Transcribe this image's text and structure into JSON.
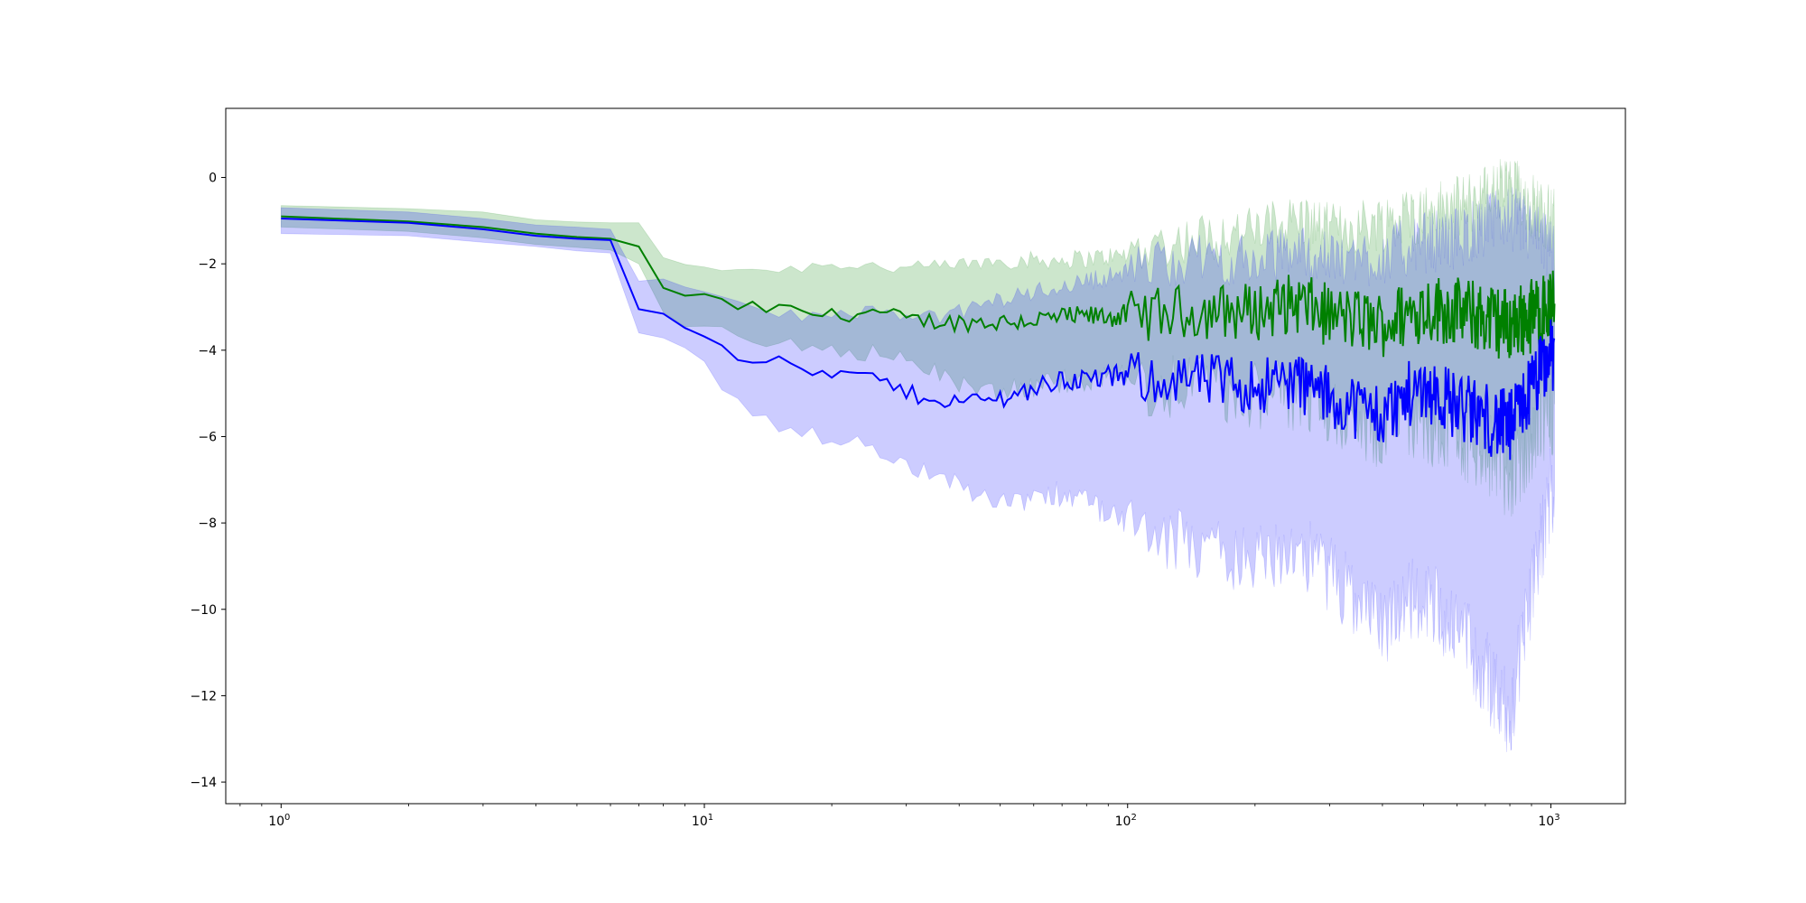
{
  "chart_data": {
    "type": "line",
    "title": "",
    "xlabel": "",
    "ylabel": "",
    "xscale": "log",
    "xlim": [
      0.74,
      1500
    ],
    "ylim": [
      -14.5,
      1.6
    ],
    "grid": false,
    "legend": "none",
    "x_ticks": [
      {
        "value": 1,
        "base": "10",
        "exp": "0"
      },
      {
        "value": 10,
        "base": "10",
        "exp": "1"
      },
      {
        "value": 100,
        "base": "10",
        "exp": "2"
      },
      {
        "value": 1000,
        "base": "10",
        "exp": "3"
      }
    ],
    "y_ticks": [
      {
        "value": 0,
        "label": "0"
      },
      {
        "value": -2,
        "label": "−2"
      },
      {
        "value": -4,
        "label": "−4"
      },
      {
        "value": -6,
        "label": "−6"
      },
      {
        "value": -8,
        "label": "−8"
      },
      {
        "value": -10,
        "label": "−10"
      },
      {
        "value": -12,
        "label": "−12"
      },
      {
        "value": -14,
        "label": "−14"
      }
    ],
    "series": [
      {
        "color": "#008000",
        "band_color": "#008000",
        "band_opacity": 0.2,
        "anchors": [
          [
            1,
            -0.9,
            -0.65,
            -1.15
          ],
          [
            2,
            -1.02,
            -0.72,
            -1.25
          ],
          [
            3,
            -1.15,
            -0.8,
            -1.4
          ],
          [
            4,
            -1.3,
            -0.98,
            -1.55
          ],
          [
            5,
            -1.38,
            -1.03,
            -1.62
          ],
          [
            6,
            -1.42,
            -1.05,
            -1.68
          ],
          [
            7,
            -1.6,
            -1.05,
            -2.0
          ],
          [
            8,
            -2.55,
            -1.95,
            -3.1
          ],
          [
            10,
            -2.8,
            -2.1,
            -3.4
          ],
          [
            12,
            -3.0,
            -2.15,
            -3.6
          ],
          [
            15,
            -3.05,
            -2.2,
            -3.75
          ],
          [
            20,
            -3.2,
            -2.05,
            -4.0
          ],
          [
            25,
            -3.1,
            -2.1,
            -4.0
          ],
          [
            30,
            -3.3,
            -2.2,
            -4.2
          ],
          [
            40,
            -3.35,
            -2.1,
            -4.6
          ],
          [
            50,
            -3.35,
            -2.0,
            -4.8
          ],
          [
            70,
            -3.25,
            -2.0,
            -4.6
          ],
          [
            100,
            -3.2,
            -1.9,
            -4.5
          ],
          [
            150,
            -3.1,
            -1.6,
            -4.5
          ],
          [
            200,
            -3.1,
            -1.5,
            -4.7
          ],
          [
            250,
            -2.9,
            -1.2,
            -4.8
          ],
          [
            300,
            -3.2,
            -1.5,
            -4.9
          ],
          [
            400,
            -3.4,
            -1.3,
            -5.5
          ],
          [
            500,
            -3.0,
            -1.1,
            -5.3
          ],
          [
            600,
            -3.1,
            -1.0,
            -5.5
          ],
          [
            800,
            -3.4,
            -0.5,
            -6.5
          ],
          [
            1000,
            -3.0,
            -1.3,
            -4.9
          ]
        ]
      },
      {
        "color": "#0000ff",
        "band_color": "#0000ff",
        "band_opacity": 0.2,
        "anchors": [
          [
            1,
            -0.95,
            -0.7,
            -1.3
          ],
          [
            2,
            -1.05,
            -0.8,
            -1.35
          ],
          [
            3,
            -1.2,
            -0.95,
            -1.5
          ],
          [
            4,
            -1.35,
            -1.1,
            -1.6
          ],
          [
            5,
            -1.42,
            -1.15,
            -1.7
          ],
          [
            6,
            -1.45,
            -1.2,
            -1.75
          ],
          [
            7,
            -3.05,
            -2.4,
            -3.6
          ],
          [
            8,
            -3.15,
            -2.5,
            -3.7
          ],
          [
            10,
            -3.6,
            -2.8,
            -4.3
          ],
          [
            12,
            -4.1,
            -3.0,
            -5.2
          ],
          [
            15,
            -4.3,
            -3.2,
            -5.7
          ],
          [
            20,
            -4.6,
            -3.3,
            -6.0
          ],
          [
            25,
            -4.6,
            -3.1,
            -6.1
          ],
          [
            30,
            -5.0,
            -3.4,
            -6.6
          ],
          [
            40,
            -5.2,
            -3.2,
            -7.0
          ],
          [
            50,
            -5.1,
            -2.9,
            -7.4
          ],
          [
            70,
            -4.7,
            -2.6,
            -7.2
          ],
          [
            100,
            -4.6,
            -2.3,
            -7.8
          ],
          [
            150,
            -4.7,
            -2.1,
            -8.3
          ],
          [
            200,
            -4.8,
            -2.2,
            -8.6
          ],
          [
            250,
            -4.7,
            -1.9,
            -8.2
          ],
          [
            300,
            -5.1,
            -2.2,
            -8.8
          ],
          [
            400,
            -5.5,
            -2.1,
            -10.0
          ],
          [
            500,
            -4.8,
            -1.8,
            -9.2
          ],
          [
            600,
            -5.3,
            -1.7,
            -10.0
          ],
          [
            800,
            -5.8,
            -1.2,
            -12.0
          ],
          [
            1000,
            -4.1,
            -2.0,
            -6.8
          ]
        ]
      }
    ]
  }
}
